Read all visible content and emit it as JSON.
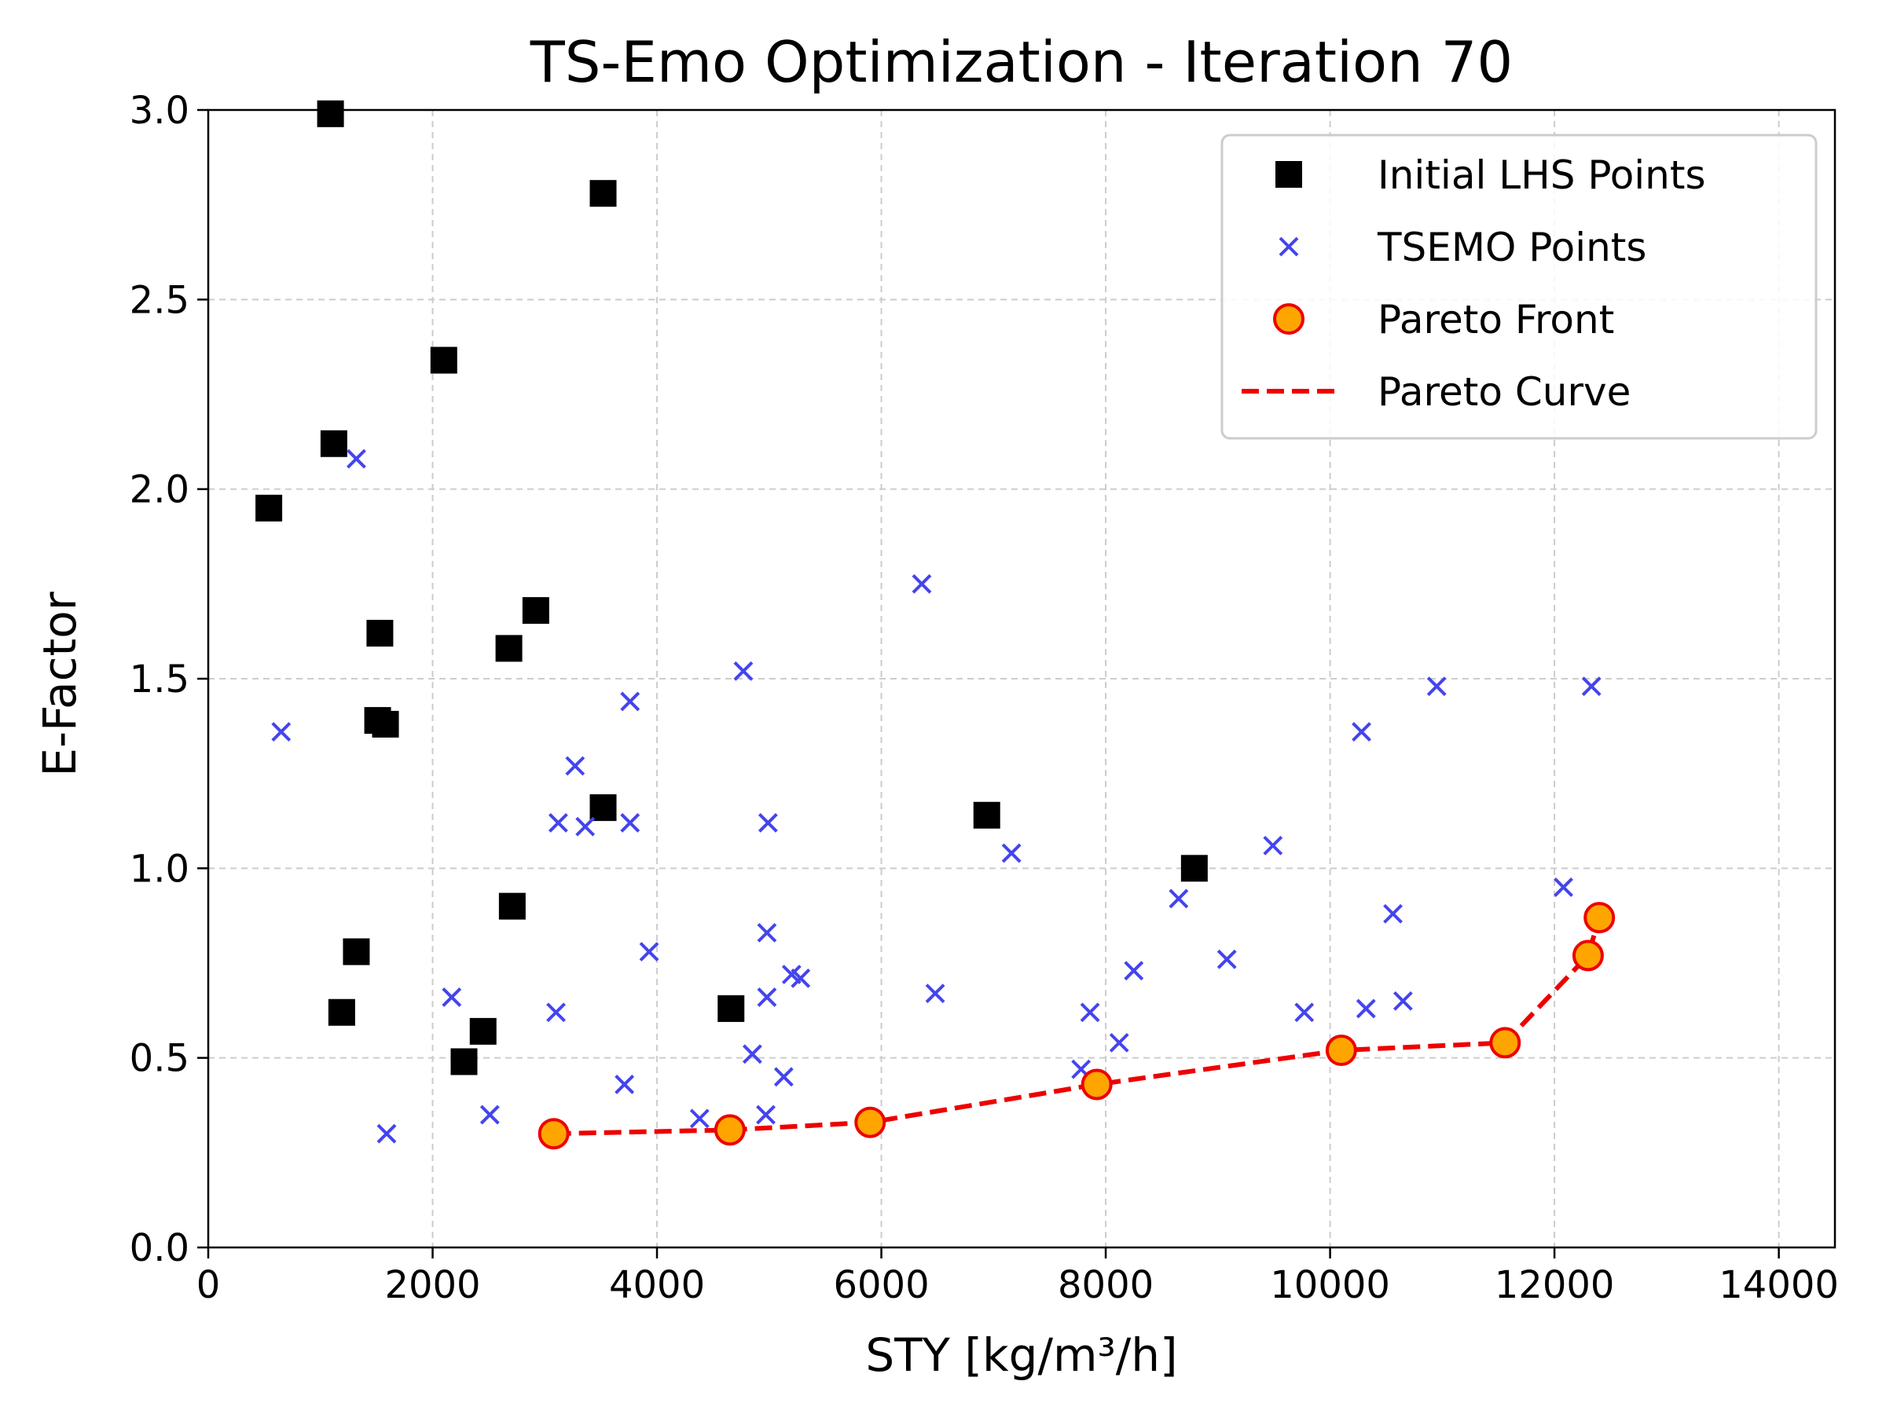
{
  "chart_data": {
    "type": "scatter",
    "title": "TS-Emo Optimization - Iteration 70",
    "xlabel": "STY [kg/m³/h]",
    "ylabel": "E-Factor",
    "xlim": [
      0,
      14500
    ],
    "ylim": [
      0,
      3.0
    ],
    "xticks": [
      0,
      2000,
      4000,
      6000,
      8000,
      10000,
      12000,
      14000
    ],
    "yticks": [
      0.0,
      0.5,
      1.0,
      1.5,
      2.0,
      2.5,
      3.0
    ],
    "xtick_labels": [
      "0",
      "2000",
      "4000",
      "6000",
      "8000",
      "10000",
      "12000",
      "14000"
    ],
    "ytick_labels": [
      "0.0",
      "0.5",
      "1.0",
      "1.5",
      "2.0",
      "2.5",
      "3.0"
    ],
    "grid": true,
    "legend_position": "top-right",
    "colors": {
      "initial": "#000000",
      "tsemo": "#4444ee",
      "pareto_fill": "#ffa500",
      "pareto_edge": "#ee0000",
      "curve": "#ee0000"
    },
    "series": [
      {
        "name": "Initial LHS Points",
        "marker": "square",
        "points": [
          [
            1090,
            2.99
          ],
          [
            3520,
            2.78
          ],
          [
            2100,
            2.34
          ],
          [
            1120,
            2.12
          ],
          [
            540,
            1.95
          ],
          [
            2920,
            1.68
          ],
          [
            1530,
            1.62
          ],
          [
            2680,
            1.58
          ],
          [
            1510,
            1.39
          ],
          [
            1580,
            1.38
          ],
          [
            3520,
            1.16
          ],
          [
            6940,
            1.14
          ],
          [
            8790,
            1.0
          ],
          [
            2710,
            0.9
          ],
          [
            1320,
            0.78
          ],
          [
            1190,
            0.62
          ],
          [
            4660,
            0.63
          ],
          [
            2450,
            0.57
          ],
          [
            2280,
            0.49
          ]
        ]
      },
      {
        "name": "TSEMO Points",
        "marker": "x",
        "points": [
          [
            1320,
            2.08
          ],
          [
            650,
            1.36
          ],
          [
            6360,
            1.75
          ],
          [
            4770,
            1.52
          ],
          [
            10950,
            1.48
          ],
          [
            12330,
            1.48
          ],
          [
            3760,
            1.44
          ],
          [
            10280,
            1.36
          ],
          [
            3270,
            1.27
          ],
          [
            3120,
            1.12
          ],
          [
            3360,
            1.11
          ],
          [
            3760,
            1.12
          ],
          [
            4990,
            1.12
          ],
          [
            7160,
            1.04
          ],
          [
            9490,
            1.06
          ],
          [
            12080,
            0.95
          ],
          [
            8650,
            0.92
          ],
          [
            10560,
            0.88
          ],
          [
            3930,
            0.78
          ],
          [
            4980,
            0.83
          ],
          [
            9080,
            0.76
          ],
          [
            8250,
            0.73
          ],
          [
            5200,
            0.72
          ],
          [
            5280,
            0.71
          ],
          [
            6480,
            0.67
          ],
          [
            4980,
            0.66
          ],
          [
            2170,
            0.66
          ],
          [
            3100,
            0.62
          ],
          [
            7860,
            0.62
          ],
          [
            9770,
            0.62
          ],
          [
            10320,
            0.63
          ],
          [
            10650,
            0.65
          ],
          [
            8120,
            0.54
          ],
          [
            4850,
            0.51
          ],
          [
            5130,
            0.45
          ],
          [
            7780,
            0.47
          ],
          [
            3710,
            0.43
          ],
          [
            2510,
            0.35
          ],
          [
            4380,
            0.34
          ],
          [
            4970,
            0.35
          ],
          [
            1590,
            0.3
          ]
        ]
      },
      {
        "name": "Pareto Front",
        "marker": "circle",
        "points": [
          [
            3080,
            0.3
          ],
          [
            4650,
            0.31
          ],
          [
            5900,
            0.33
          ],
          [
            7920,
            0.43
          ],
          [
            10100,
            0.52
          ],
          [
            11560,
            0.54
          ],
          [
            12300,
            0.77
          ],
          [
            12400,
            0.87
          ]
        ]
      },
      {
        "name": "Pareto Curve",
        "marker": "dashed-line",
        "points": [
          [
            3080,
            0.3
          ],
          [
            4650,
            0.31
          ],
          [
            5900,
            0.33
          ],
          [
            7920,
            0.43
          ],
          [
            10100,
            0.52
          ],
          [
            11560,
            0.54
          ],
          [
            12300,
            0.77
          ],
          [
            12400,
            0.87
          ]
        ]
      }
    ]
  }
}
